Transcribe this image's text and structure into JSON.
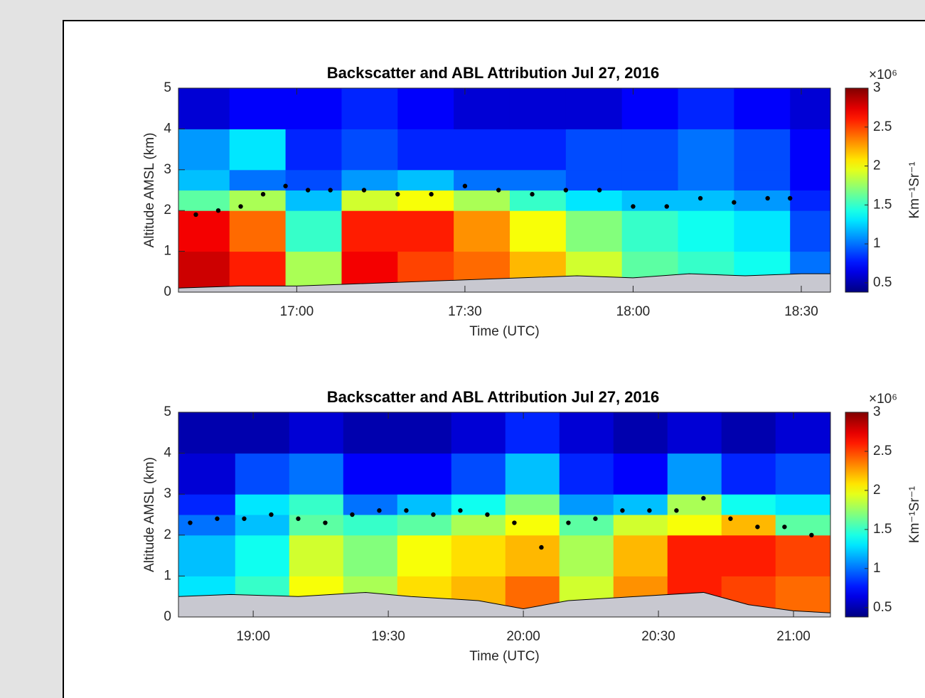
{
  "chart_data": [
    {
      "type": "heatmap",
      "title": "Backscatter and ABL Attribution Jul 27, 2016",
      "xlabel": "Time (UTC)",
      "ylabel": "Altitude AMSL (km)",
      "xlim": [
        998.9,
        1115.2
      ],
      "xticks": [
        {
          "value": 1020,
          "label": "17:00"
        },
        {
          "value": 1050,
          "label": "17:30"
        },
        {
          "value": 1080,
          "label": "18:00"
        },
        {
          "value": 1110,
          "label": "18:30"
        }
      ],
      "ylim": [
        0,
        5
      ],
      "yticks": [
        0,
        1,
        2,
        3,
        4,
        5
      ],
      "colormap": "jet",
      "x_edges": [
        998.9,
        1008,
        1018,
        1028,
        1038,
        1048,
        1058,
        1068,
        1078,
        1088,
        1098,
        1108,
        1115.2
      ],
      "y_edges": [
        0,
        1,
        2,
        2.5,
        3,
        4,
        5
      ],
      "z": [
        [
          2.8,
          2.6,
          1.8,
          2.7,
          2.5,
          2.4,
          2.2,
          1.9,
          1.6,
          1.5,
          1.4,
          1.0
        ],
        [
          2.7,
          2.4,
          1.5,
          2.6,
          2.6,
          2.3,
          2.0,
          1.7,
          1.5,
          1.4,
          1.3,
          0.9
        ],
        [
          1.6,
          1.8,
          1.2,
          1.9,
          2.0,
          1.8,
          1.5,
          1.3,
          1.2,
          1.2,
          1.1,
          0.8
        ],
        [
          1.2,
          1.0,
          0.9,
          1.1,
          1.2,
          1.0,
          1.0,
          0.9,
          0.9,
          1.0,
          0.9,
          0.7
        ],
        [
          1.1,
          1.3,
          0.8,
          0.9,
          0.8,
          0.8,
          0.8,
          0.9,
          0.9,
          1.0,
          0.9,
          0.7
        ],
        [
          0.6,
          0.7,
          0.7,
          0.8,
          0.7,
          0.6,
          0.6,
          0.6,
          0.7,
          0.8,
          0.7,
          0.6
        ]
      ],
      "clim": [
        0.38,
        3
      ],
      "cticks": [
        0.5,
        1,
        1.5,
        2,
        2.5,
        3
      ],
      "colorbar_exponent": "×10⁶",
      "colorbar_label": "Km⁻¹Sr⁻¹",
      "abl": {
        "color": "#000000",
        "x": [
          1002,
          1006,
          1010,
          1014,
          1018,
          1022,
          1026,
          1032,
          1038,
          1044,
          1050,
          1056,
          1062,
          1068,
          1074,
          1080,
          1086,
          1092,
          1098,
          1104,
          1108
        ],
        "y": [
          1.9,
          2.0,
          2.1,
          2.4,
          2.6,
          2.5,
          2.5,
          2.5,
          2.4,
          2.4,
          2.6,
          2.5,
          2.4,
          2.5,
          2.5,
          2.1,
          2.1,
          2.3,
          2.2,
          2.3,
          2.3
        ]
      },
      "surface": {
        "color": "#c8c8d0",
        "x": [
          998.9,
          1010,
          1020,
          1030,
          1040,
          1050,
          1060,
          1070,
          1080,
          1090,
          1100,
          1110,
          1115.2
        ],
        "y": [
          0.1,
          0.15,
          0.15,
          0.2,
          0.25,
          0.3,
          0.35,
          0.4,
          0.35,
          0.45,
          0.4,
          0.45,
          0.45
        ]
      }
    },
    {
      "type": "heatmap",
      "title": "Backscatter and ABL Attribution Jul 27, 2016",
      "xlabel": "Time (UTC)",
      "ylabel": "Altitude AMSL (km)",
      "xlim": [
        1123.4,
        1268.2
      ],
      "xticks": [
        {
          "value": 1140,
          "label": "19:00"
        },
        {
          "value": 1170,
          "label": "19:30"
        },
        {
          "value": 1200,
          "label": "20:00"
        },
        {
          "value": 1230,
          "label": "20:30"
        },
        {
          "value": 1260,
          "label": "21:00"
        }
      ],
      "ylim": [
        0,
        5
      ],
      "yticks": [
        0,
        1,
        2,
        3,
        4,
        5
      ],
      "colormap": "jet",
      "x_edges": [
        1123.4,
        1136,
        1148,
        1160,
        1172,
        1184,
        1196,
        1208,
        1220,
        1232,
        1244,
        1256,
        1268.2
      ],
      "y_edges": [
        0,
        1,
        2,
        2.5,
        3,
        4,
        5
      ],
      "z": [
        [
          1.3,
          1.5,
          2.0,
          1.8,
          2.1,
          2.2,
          2.4,
          1.9,
          2.3,
          2.6,
          2.5,
          2.4
        ],
        [
          1.2,
          1.4,
          1.9,
          1.7,
          2.0,
          2.1,
          2.2,
          1.8,
          2.2,
          2.6,
          2.6,
          2.5
        ],
        [
          1.0,
          1.2,
          1.6,
          1.5,
          1.6,
          1.8,
          2.0,
          1.6,
          1.9,
          2.0,
          2.2,
          1.6
        ],
        [
          0.8,
          1.3,
          1.5,
          1.0,
          1.2,
          1.4,
          1.7,
          1.1,
          1.2,
          1.8,
          1.4,
          1.3
        ],
        [
          0.6,
          0.9,
          1.0,
          0.7,
          0.7,
          0.9,
          1.2,
          0.8,
          0.7,
          1.1,
          0.8,
          0.9
        ],
        [
          0.5,
          0.5,
          0.6,
          0.5,
          0.5,
          0.6,
          0.8,
          0.6,
          0.5,
          0.6,
          0.5,
          0.6
        ]
      ],
      "clim": [
        0.38,
        3
      ],
      "cticks": [
        0.5,
        1,
        1.5,
        2,
        2.5,
        3
      ],
      "colorbar_exponent": "×10⁶",
      "colorbar_label": "Km⁻¹Sr⁻¹",
      "abl": {
        "color": "#000000",
        "x": [
          1126,
          1132,
          1138,
          1144,
          1150,
          1156,
          1162,
          1168,
          1174,
          1180,
          1186,
          1192,
          1198,
          1204,
          1210,
          1216,
          1222,
          1228,
          1234,
          1240,
          1246,
          1252,
          1258,
          1264
        ],
        "y": [
          2.3,
          2.4,
          2.4,
          2.5,
          2.4,
          2.3,
          2.5,
          2.6,
          2.6,
          2.5,
          2.6,
          2.5,
          2.3,
          1.7,
          2.3,
          2.4,
          2.6,
          2.6,
          2.6,
          2.9,
          2.4,
          2.2,
          2.2,
          2.0
        ]
      },
      "surface": {
        "color": "#c8c8d0",
        "x": [
          1123.4,
          1135,
          1150,
          1165,
          1175,
          1190,
          1200,
          1210,
          1225,
          1240,
          1250,
          1260,
          1268.2
        ],
        "y": [
          0.5,
          0.55,
          0.5,
          0.6,
          0.5,
          0.4,
          0.2,
          0.4,
          0.5,
          0.6,
          0.3,
          0.15,
          0.1
        ]
      }
    }
  ]
}
